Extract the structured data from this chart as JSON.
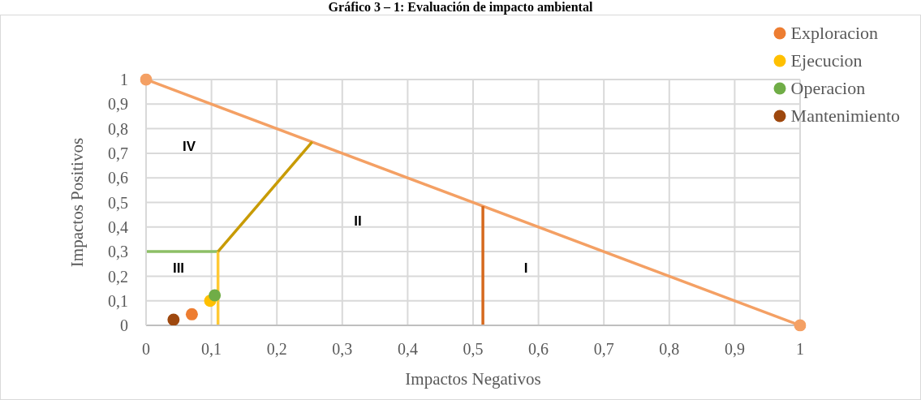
{
  "chart_data": {
    "type": "scatter",
    "title": "Gráfico 3 – 1: Evaluación de impacto ambiental",
    "xlabel": "Impactos Negativos",
    "ylabel": "Impactos Positivos",
    "xlim": [
      0,
      1
    ],
    "ylim": [
      0,
      1
    ],
    "xticks": [
      0,
      {
        "value": 0.1,
        "label": "0,1"
      },
      {
        "value": 0.2,
        "label": "0,2"
      },
      {
        "value": 0.3,
        "label": "0,3"
      },
      {
        "value": 0.4,
        "label": "0,4"
      },
      {
        "value": 0.5,
        "label": "0,5"
      },
      {
        "value": 0.6,
        "label": "0,6"
      },
      {
        "value": 0.7,
        "label": "0,7"
      },
      {
        "value": 0.8,
        "label": "0,8"
      },
      {
        "value": 0.9,
        "label": "0,9"
      },
      1
    ],
    "yticks": [
      0,
      {
        "value": 0.1,
        "label": "0,1"
      },
      {
        "value": 0.2,
        "label": "0,2"
      },
      {
        "value": 0.3,
        "label": "0,3"
      },
      {
        "value": 0.4,
        "label": "0,4"
      },
      {
        "value": 0.5,
        "label": "0,5"
      },
      {
        "value": 0.6,
        "label": "0,6"
      },
      {
        "value": 0.7,
        "label": "0,7"
      },
      {
        "value": 0.8,
        "label": "0,8"
      },
      {
        "value": 0.9,
        "label": "0,9"
      },
      1
    ],
    "grid": true,
    "legend": "top right",
    "marker": "circle",
    "series": [
      {
        "type": "line",
        "color": "#f4a064",
        "x": [
          0,
          1
        ],
        "values": [
          1,
          0
        ]
      },
      {
        "type": "line",
        "color": "#8dbf66",
        "x": [
          0,
          0.11
        ],
        "values": [
          0.3,
          0.3
        ],
        "marker": "none"
      },
      {
        "type": "line",
        "color": "#ffc934",
        "x": [
          0.11,
          0.11
        ],
        "values": [
          0,
          0.3
        ],
        "marker": "none"
      },
      {
        "type": "line",
        "color": "#c89b05",
        "x": [
          0.11,
          0.254
        ],
        "values": [
          0.3,
          0.746
        ],
        "marker": "none"
      },
      {
        "type": "line",
        "color": "#d6691e",
        "x": [
          0.515,
          0.515
        ],
        "values": [
          0,
          0.485
        ],
        "marker": "none"
      },
      {
        "name": "Exploracion",
        "color": "#ed7d31",
        "x": [
          0.07
        ],
        "values": [
          0.045
        ]
      },
      {
        "name": "Ejecucion",
        "color": "#ffc000",
        "x": [
          0.098
        ],
        "values": [
          0.1
        ]
      },
      {
        "name": "Operacion",
        "color": "#70ad47",
        "x": [
          0.105
        ],
        "values": [
          0.122
        ]
      },
      {
        "name": "Mantenimiento",
        "color": "#9e480e",
        "x": [
          0.042
        ],
        "values": [
          0.023
        ]
      }
    ],
    "annotations": [
      "IV",
      "II",
      "III",
      "I"
    ]
  }
}
